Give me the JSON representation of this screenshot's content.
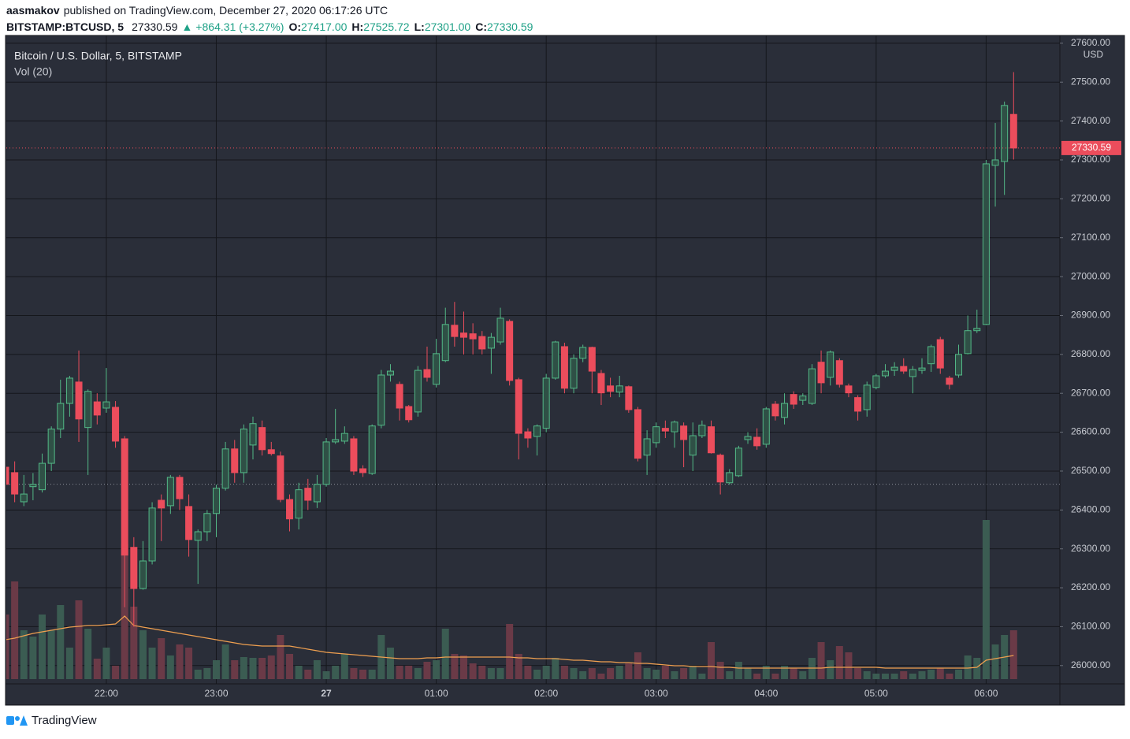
{
  "header": {
    "author": "aasmakov",
    "published": "published on TradingView.com, December 27, 2020 06:17:26 UTC",
    "symbol": "BITSTAMP:BTCUSD, 5",
    "price": "27330.59",
    "arrow": "▲",
    "change": "+864.31 (+3.27%)",
    "o_label": "O:",
    "o": "27417.00",
    "h_label": "H:",
    "h": "27525.72",
    "l_label": "L:",
    "l": "27301.00",
    "c_label": "C:",
    "c": "27330.59"
  },
  "footer": {
    "brand": "TradingView"
  },
  "chart_data": {
    "type": "candlestick",
    "title": "Bitcoin / U.S. Dollar, 5, BITSTAMP",
    "volume_title": "Vol (20)",
    "currency": "USD",
    "categories": [
      null,
      null,
      null,
      null,
      null,
      null,
      null,
      null,
      null,
      null,
      null,
      "22:00",
      null,
      null,
      null,
      null,
      null,
      null,
      null,
      null,
      null,
      null,
      null,
      "23:00",
      null,
      null,
      null,
      null,
      null,
      null,
      null,
      null,
      null,
      null,
      null,
      "27",
      null,
      null,
      null,
      null,
      null,
      null,
      null,
      null,
      null,
      null,
      null,
      "01:00",
      null,
      null,
      null,
      null,
      null,
      null,
      null,
      null,
      null,
      null,
      null,
      "02:00",
      null,
      null,
      null,
      null,
      null,
      null,
      null,
      null,
      null,
      null,
      null,
      "03:00",
      null,
      null,
      null,
      null,
      null,
      null,
      null,
      null,
      null,
      null,
      null,
      "04:00",
      null,
      null,
      null,
      null,
      null,
      null,
      null,
      null,
      null,
      null,
      null,
      "05:00",
      null,
      null,
      null,
      null,
      null,
      null,
      null,
      null,
      null,
      null,
      null,
      "06:00",
      null,
      null,
      null
    ],
    "open": [
      26510,
      26496,
      26421,
      26460,
      26452,
      26520,
      26608,
      26674,
      26729,
      26612,
      26678,
      26662,
      26664,
      26583,
      26304,
      26198,
      26269,
      26425,
      26411,
      26484,
      26409,
      26322,
      26344,
      26391,
      26456,
      26557,
      26496,
      26567,
      26612,
      26555,
      26539,
      26427,
      26379,
      26456,
      26421,
      26466,
      26575,
      26577,
      26583,
      26506,
      26494,
      26618,
      26747,
      26723,
      26666,
      26652,
      26761,
      26723,
      26784,
      26875,
      26855,
      26853,
      26846,
      26816,
      26832,
      26885,
      26735,
      26601,
      26589,
      26610,
      26739,
      26820,
      26713,
      26790,
      26818,
      26751,
      26719,
      26703,
      26717,
      26658,
      26541,
      26573,
      26610,
      26601,
      26616,
      26541,
      26591,
      26614,
      26541,
      26470,
      26488,
      26581,
      26587,
      26569,
      26672,
      26638,
      26697,
      26682,
      26674,
      26780,
      26741,
      26784,
      26719,
      26689,
      26658,
      26715,
      26745,
      26759,
      26769,
      26743,
      26759,
      26776,
      26838,
      26739,
      26747,
      26802,
      26861,
      26877,
      27286,
      27296,
      27417
    ],
    "high": [
      26540,
      26525,
      26490,
      26495,
      26545,
      26615,
      26735,
      26745,
      26810,
      26710,
      26700,
      26765,
      26680,
      26590,
      26330,
      26320,
      26420,
      26440,
      26490,
      26490,
      26440,
      26350,
      26400,
      26465,
      26575,
      26580,
      26620,
      26640,
      26630,
      26575,
      26550,
      26440,
      26470,
      26480,
      26490,
      26585,
      26660,
      26615,
      26590,
      26515,
      26620,
      26760,
      26775,
      26730,
      26670,
      26770,
      26820,
      26840,
      26920,
      26935,
      26910,
      26880,
      26860,
      26855,
      26920,
      26890,
      26740,
      26610,
      26620,
      26750,
      26835,
      26830,
      26800,
      26825,
      26820,
      26760,
      26740,
      26745,
      26720,
      26665,
      26605,
      26625,
      26630,
      26630,
      26625,
      26625,
      26630,
      26630,
      26545,
      26505,
      26565,
      26600,
      26610,
      26665,
      26680,
      26700,
      26705,
      26700,
      26775,
      26810,
      26810,
      26790,
      26725,
      26695,
      26730,
      26750,
      26775,
      26780,
      26790,
      26770,
      26790,
      26825,
      26845,
      26745,
      26825,
      26900,
      26915,
      27300,
      27395,
      27450,
      27525.72
    ],
    "low": [
      26380,
      26420,
      26410,
      26425,
      26445,
      26500,
      26585,
      26640,
      26575,
      26490,
      26620,
      26650,
      26560,
      26150,
      26100,
      26195,
      26260,
      26320,
      26390,
      26400,
      26280,
      26210,
      26320,
      26330,
      26450,
      26470,
      26470,
      26530,
      26540,
      26540,
      26420,
      26345,
      26350,
      26400,
      26405,
      26460,
      26570,
      26570,
      26490,
      26485,
      26490,
      26610,
      26730,
      26630,
      26625,
      26640,
      26730,
      26715,
      26780,
      26820,
      26800,
      26800,
      26800,
      26750,
      26825,
      26720,
      26530,
      26560,
      26540,
      26600,
      26735,
      26700,
      26700,
      26780,
      26700,
      26670,
      26690,
      26690,
      26650,
      26525,
      26490,
      26560,
      26585,
      26560,
      26510,
      26500,
      26585,
      26545,
      26440,
      26465,
      26485,
      26570,
      26555,
      26560,
      26630,
      26620,
      26660,
      26670,
      26670,
      26700,
      26720,
      26715,
      26690,
      26630,
      26640,
      26710,
      26740,
      26745,
      26750,
      26700,
      26750,
      26755,
      26750,
      26710,
      26740,
      26800,
      26855,
      26875,
      27180,
      27210,
      27301
    ],
    "close": [
      26466,
      26441,
      26441,
      26466,
      26520,
      26608,
      26674,
      26739,
      26634,
      26705,
      26644,
      26678,
      26577,
      26284,
      26198,
      26269,
      26405,
      26405,
      26484,
      26429,
      26324,
      26344,
      26391,
      26456,
      26557,
      26496,
      26608,
      26622,
      26555,
      26545,
      26427,
      26377,
      26452,
      26425,
      26466,
      26575,
      26581,
      26597,
      26500,
      26496,
      26616,
      26747,
      26757,
      26662,
      26632,
      26759,
      26741,
      26802,
      26877,
      26846,
      26844,
      26840,
      26814,
      26844,
      26893,
      26733,
      26597,
      26585,
      26616,
      26739,
      26832,
      26713,
      26790,
      26818,
      26757,
      26701,
      26705,
      26719,
      26658,
      26533,
      26583,
      26614,
      26603,
      26626,
      26581,
      26591,
      26618,
      26547,
      26472,
      26496,
      26559,
      26589,
      26565,
      26660,
      26642,
      26674,
      26672,
      26693,
      26763,
      26727,
      26806,
      26723,
      26701,
      26654,
      26721,
      26745,
      26757,
      26767,
      26757,
      26761,
      26765,
      26820,
      26765,
      26723,
      26800,
      26861,
      26867,
      27290,
      27300,
      27440,
      27330.59
    ],
    "volume": [
      82,
      124,
      62,
      54,
      82,
      62,
      94,
      40,
      100,
      64,
      26,
      40,
      17,
      172,
      92,
      62,
      40,
      52,
      30,
      44,
      40,
      12,
      14,
      24,
      44,
      24,
      28,
      27,
      27,
      30,
      56,
      32,
      17,
      12,
      24,
      10,
      17,
      32,
      14,
      12,
      12,
      56,
      40,
      17,
      17,
      14,
      22,
      24,
      64,
      32,
      30,
      20,
      17,
      14,
      14,
      70,
      32,
      17,
      12,
      17,
      27,
      17,
      14,
      10,
      14,
      7,
      14,
      17,
      20,
      34,
      14,
      12,
      17,
      10,
      14,
      17,
      7,
      47,
      22,
      10,
      22,
      14,
      7,
      17,
      7,
      17,
      14,
      10,
      27,
      47,
      24,
      42,
      34,
      14,
      10,
      7,
      7,
      7,
      10,
      7,
      10,
      12,
      14,
      7,
      12,
      30,
      27,
      202,
      44,
      56,
      62
    ],
    "volume_ma": [
      50,
      52,
      55,
      58,
      60,
      62,
      64,
      66,
      67,
      68,
      68,
      69,
      70,
      80,
      68,
      66,
      64,
      62,
      60,
      58,
      56,
      54,
      52,
      50,
      48,
      46,
      44,
      43,
      42,
      42,
      42,
      42,
      40,
      38,
      36,
      34,
      33,
      32,
      31,
      30,
      29,
      28,
      27,
      26,
      26,
      26,
      27,
      27,
      28,
      28,
      28,
      28,
      28,
      28,
      28,
      28,
      27,
      27,
      26,
      26,
      26,
      25,
      24,
      24,
      23,
      22,
      22,
      21,
      21,
      20,
      20,
      19,
      18,
      17,
      17,
      16,
      16,
      16,
      15,
      15,
      14,
      14,
      14,
      14,
      14,
      14,
      14,
      14,
      14,
      14,
      15,
      15,
      15,
      15,
      15,
      15,
      14,
      14,
      14,
      14,
      14,
      14,
      14,
      14,
      14,
      14,
      15,
      24,
      26,
      28,
      30
    ],
    "prev_close": 26466.28,
    "ylim": [
      25953,
      27620
    ],
    "yticks": [
      {
        "value": 26000,
        "label": "26000.00"
      },
      {
        "value": 26100,
        "label": "26100.00"
      },
      {
        "value": 26200,
        "label": "26200.00"
      },
      {
        "value": 26300,
        "label": "26300.00"
      },
      {
        "value": 26400,
        "label": "26400.00"
      },
      {
        "value": 26500,
        "label": "26500.00"
      },
      {
        "value": 26600,
        "label": "26600.00"
      },
      {
        "value": 26700,
        "label": "26700.00"
      },
      {
        "value": 26800,
        "label": "26800.00"
      },
      {
        "value": 26900,
        "label": "26900.00"
      },
      {
        "value": 27000,
        "label": "27000.00"
      },
      {
        "value": 27100,
        "label": "27100.00"
      },
      {
        "value": 27200,
        "label": "27200.00"
      },
      {
        "value": 27300,
        "label": "27300.00"
      },
      {
        "value": 27400,
        "label": "27400.00"
      },
      {
        "value": 27500,
        "label": "27500.00"
      },
      {
        "value": 27600,
        "label": "27600.00"
      }
    ],
    "grid": true,
    "colors": {
      "up": "#53b987",
      "up_fill": "#2f5046",
      "down": "#eb4d5c",
      "volume_up": "#3b5c52",
      "volume_down": "#6a3a47",
      "volume_ma": "#f0a050",
      "prev_close": "#8a8e98"
    }
  }
}
